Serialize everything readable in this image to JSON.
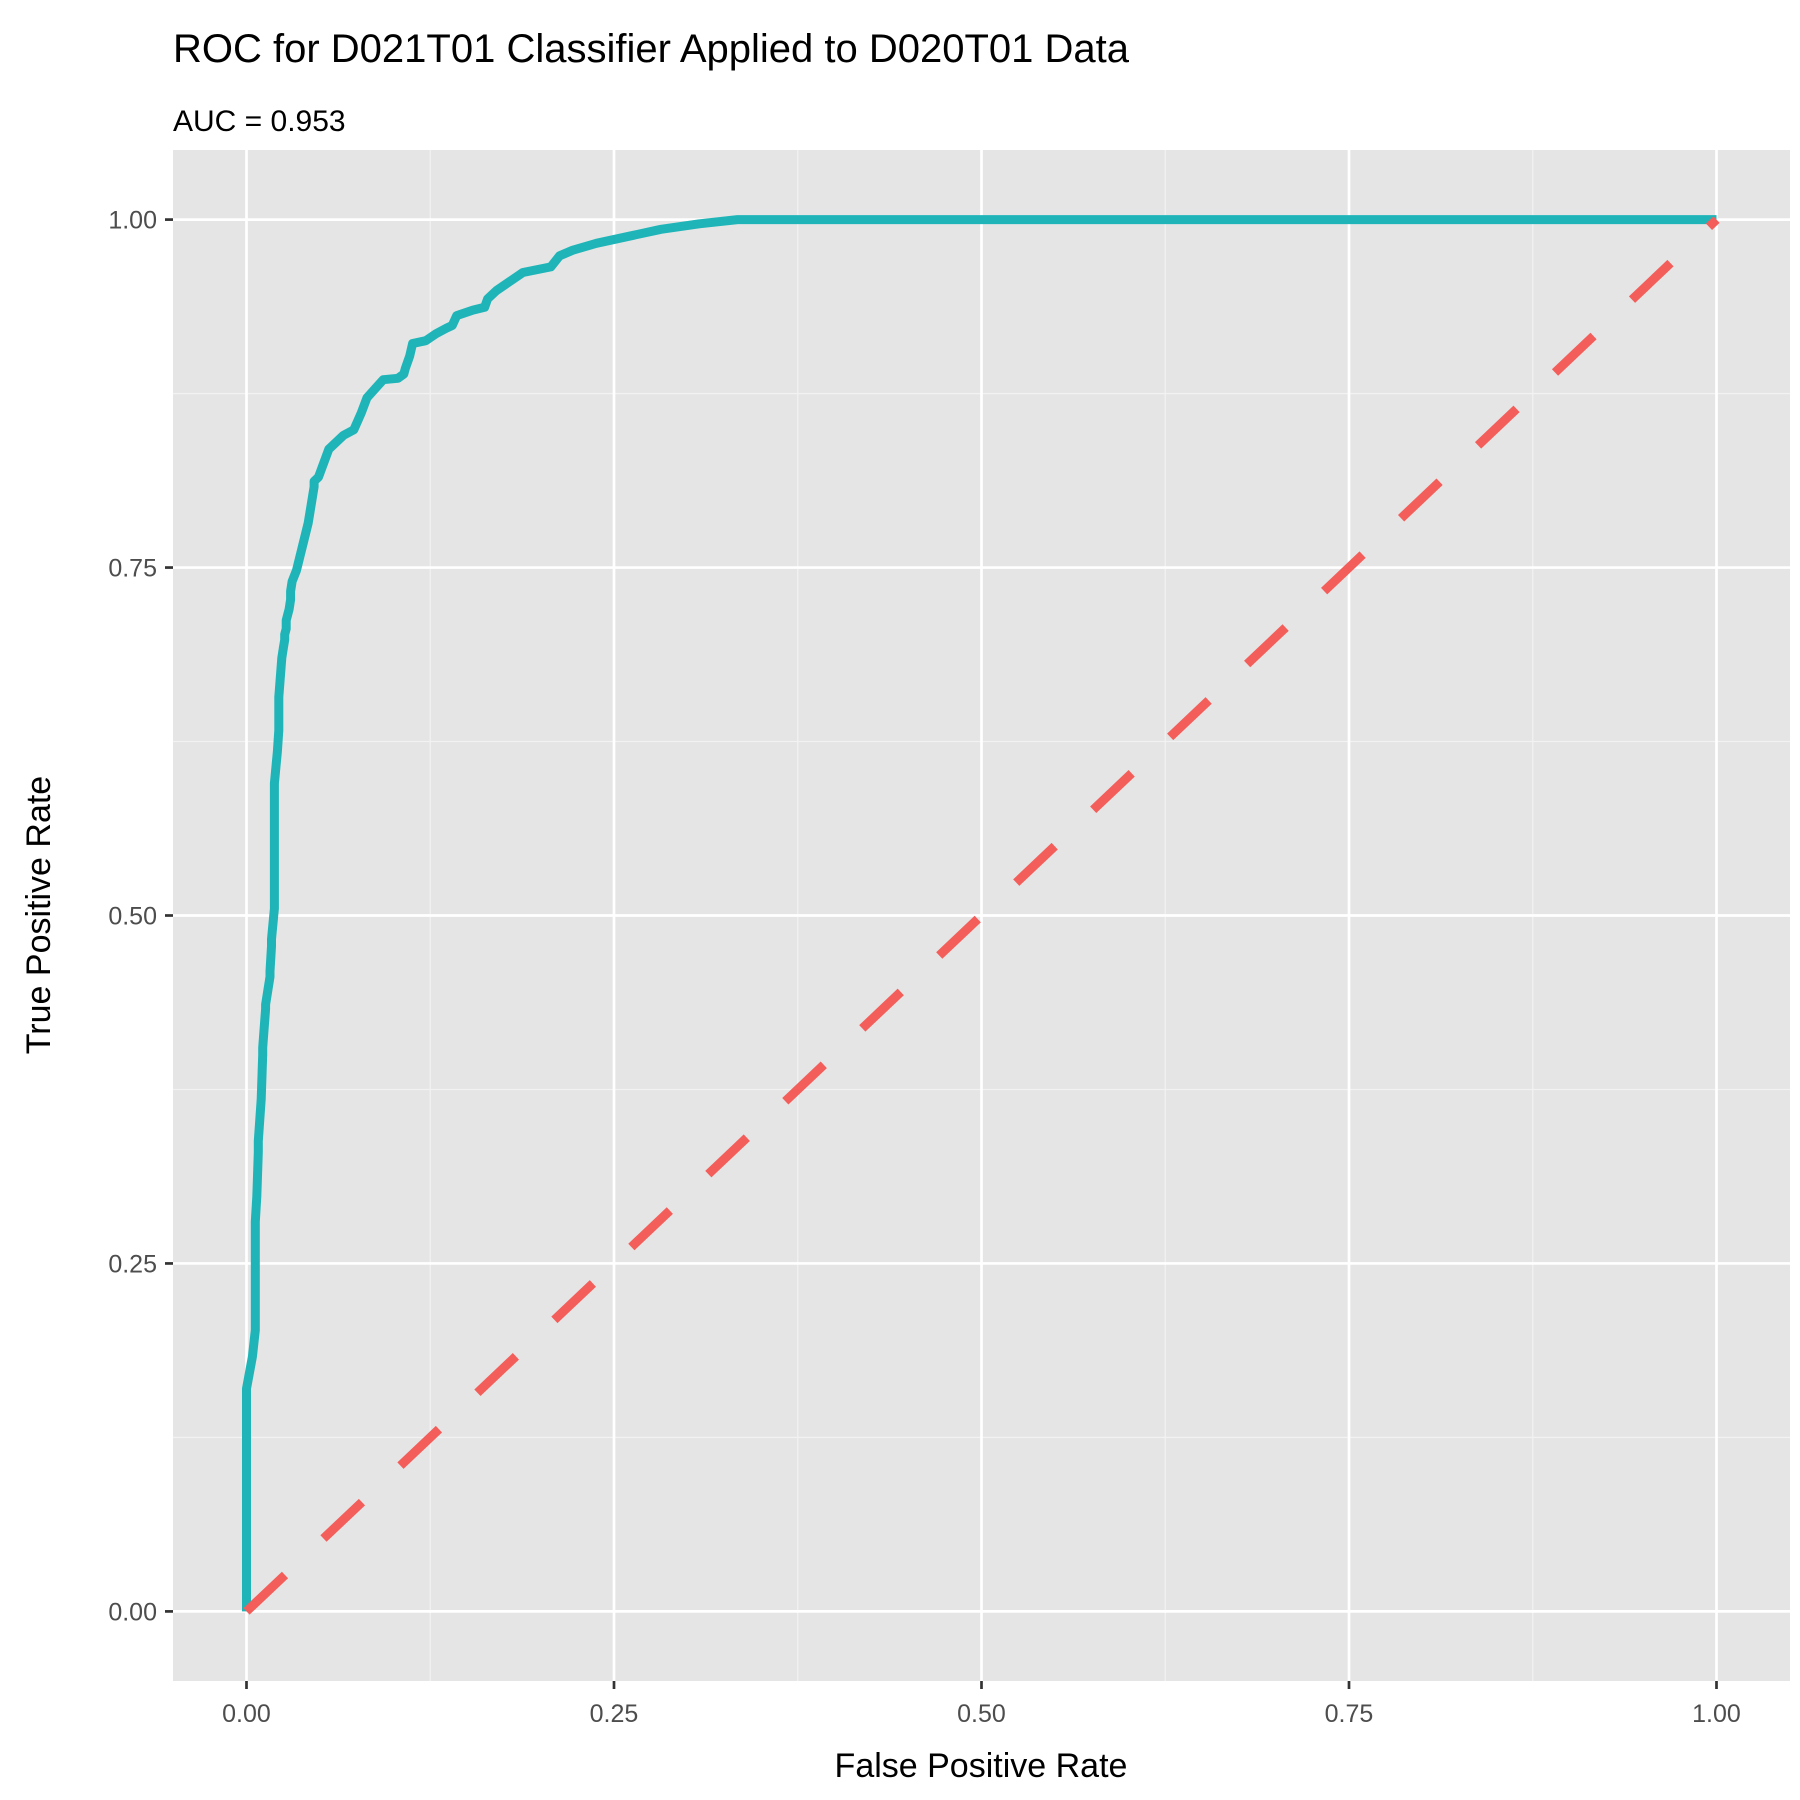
{
  "chart_data": {
    "type": "line",
    "title": "ROC for D021T01 Classifier Applied to D020T01 Data",
    "subtitle": "AUC = 0.953",
    "xlabel": "False Positive Rate",
    "ylabel": "True Positive Rate",
    "xlim": [
      -0.05,
      1.05
    ],
    "ylim": [
      -0.05,
      1.05
    ],
    "x_ticks": [
      0.0,
      0.25,
      0.5,
      0.75,
      1.0
    ],
    "y_ticks": [
      0.0,
      0.25,
      0.5,
      0.75,
      1.0
    ],
    "x_tick_labels": [
      "0.00",
      "0.25",
      "0.50",
      "0.75",
      "1.00"
    ],
    "y_tick_labels": [
      "0.00",
      "0.25",
      "0.50",
      "0.75",
      "1.00"
    ],
    "grid": true,
    "panel_background": "#e5e5e5",
    "series": [
      {
        "color": "#1fb5b8",
        "line_style": "solid",
        "x": [
          0.0,
          0.0,
          0.0,
          0.004,
          0.006,
          0.006,
          0.007,
          0.008,
          0.008,
          0.01,
          0.011,
          0.011,
          0.013,
          0.013,
          0.016,
          0.016,
          0.017,
          0.017,
          0.019,
          0.019,
          0.021,
          0.022,
          0.022,
          0.024,
          0.025,
          0.026,
          0.026,
          0.027,
          0.027,
          0.029,
          0.03,
          0.03,
          0.031,
          0.034,
          0.042,
          0.046,
          0.046,
          0.049,
          0.056,
          0.066,
          0.073,
          0.078,
          0.082,
          0.093,
          0.103,
          0.107,
          0.108,
          0.111,
          0.113,
          0.122,
          0.129,
          0.136,
          0.14,
          0.143,
          0.154,
          0.162,
          0.164,
          0.17,
          0.188,
          0.207,
          0.213,
          0.222,
          0.238,
          0.26,
          0.282,
          0.308,
          0.334,
          0.364,
          0.41,
          0.455,
          1.0
        ],
        "y": [
          0.0,
          0.1,
          0.16,
          0.183,
          0.202,
          0.28,
          0.298,
          0.33,
          0.338,
          0.368,
          0.4,
          0.405,
          0.433,
          0.436,
          0.456,
          0.46,
          0.478,
          0.483,
          0.505,
          0.595,
          0.618,
          0.633,
          0.657,
          0.685,
          0.692,
          0.698,
          0.702,
          0.706,
          0.712,
          0.72,
          0.727,
          0.733,
          0.74,
          0.748,
          0.782,
          0.808,
          0.812,
          0.815,
          0.835,
          0.845,
          0.849,
          0.861,
          0.872,
          0.885,
          0.886,
          0.889,
          0.893,
          0.902,
          0.911,
          0.913,
          0.918,
          0.922,
          0.924,
          0.931,
          0.935,
          0.937,
          0.943,
          0.949,
          0.962,
          0.966,
          0.974,
          0.978,
          0.983,
          0.988,
          0.993,
          0.997,
          1.0,
          1.0,
          1.0,
          1.0,
          1.0
        ]
      },
      {
        "color": "#f35e5a",
        "line_style": "dashed",
        "x": [
          0.0,
          1.0
        ],
        "y": [
          0.0,
          1.0
        ]
      }
    ]
  }
}
